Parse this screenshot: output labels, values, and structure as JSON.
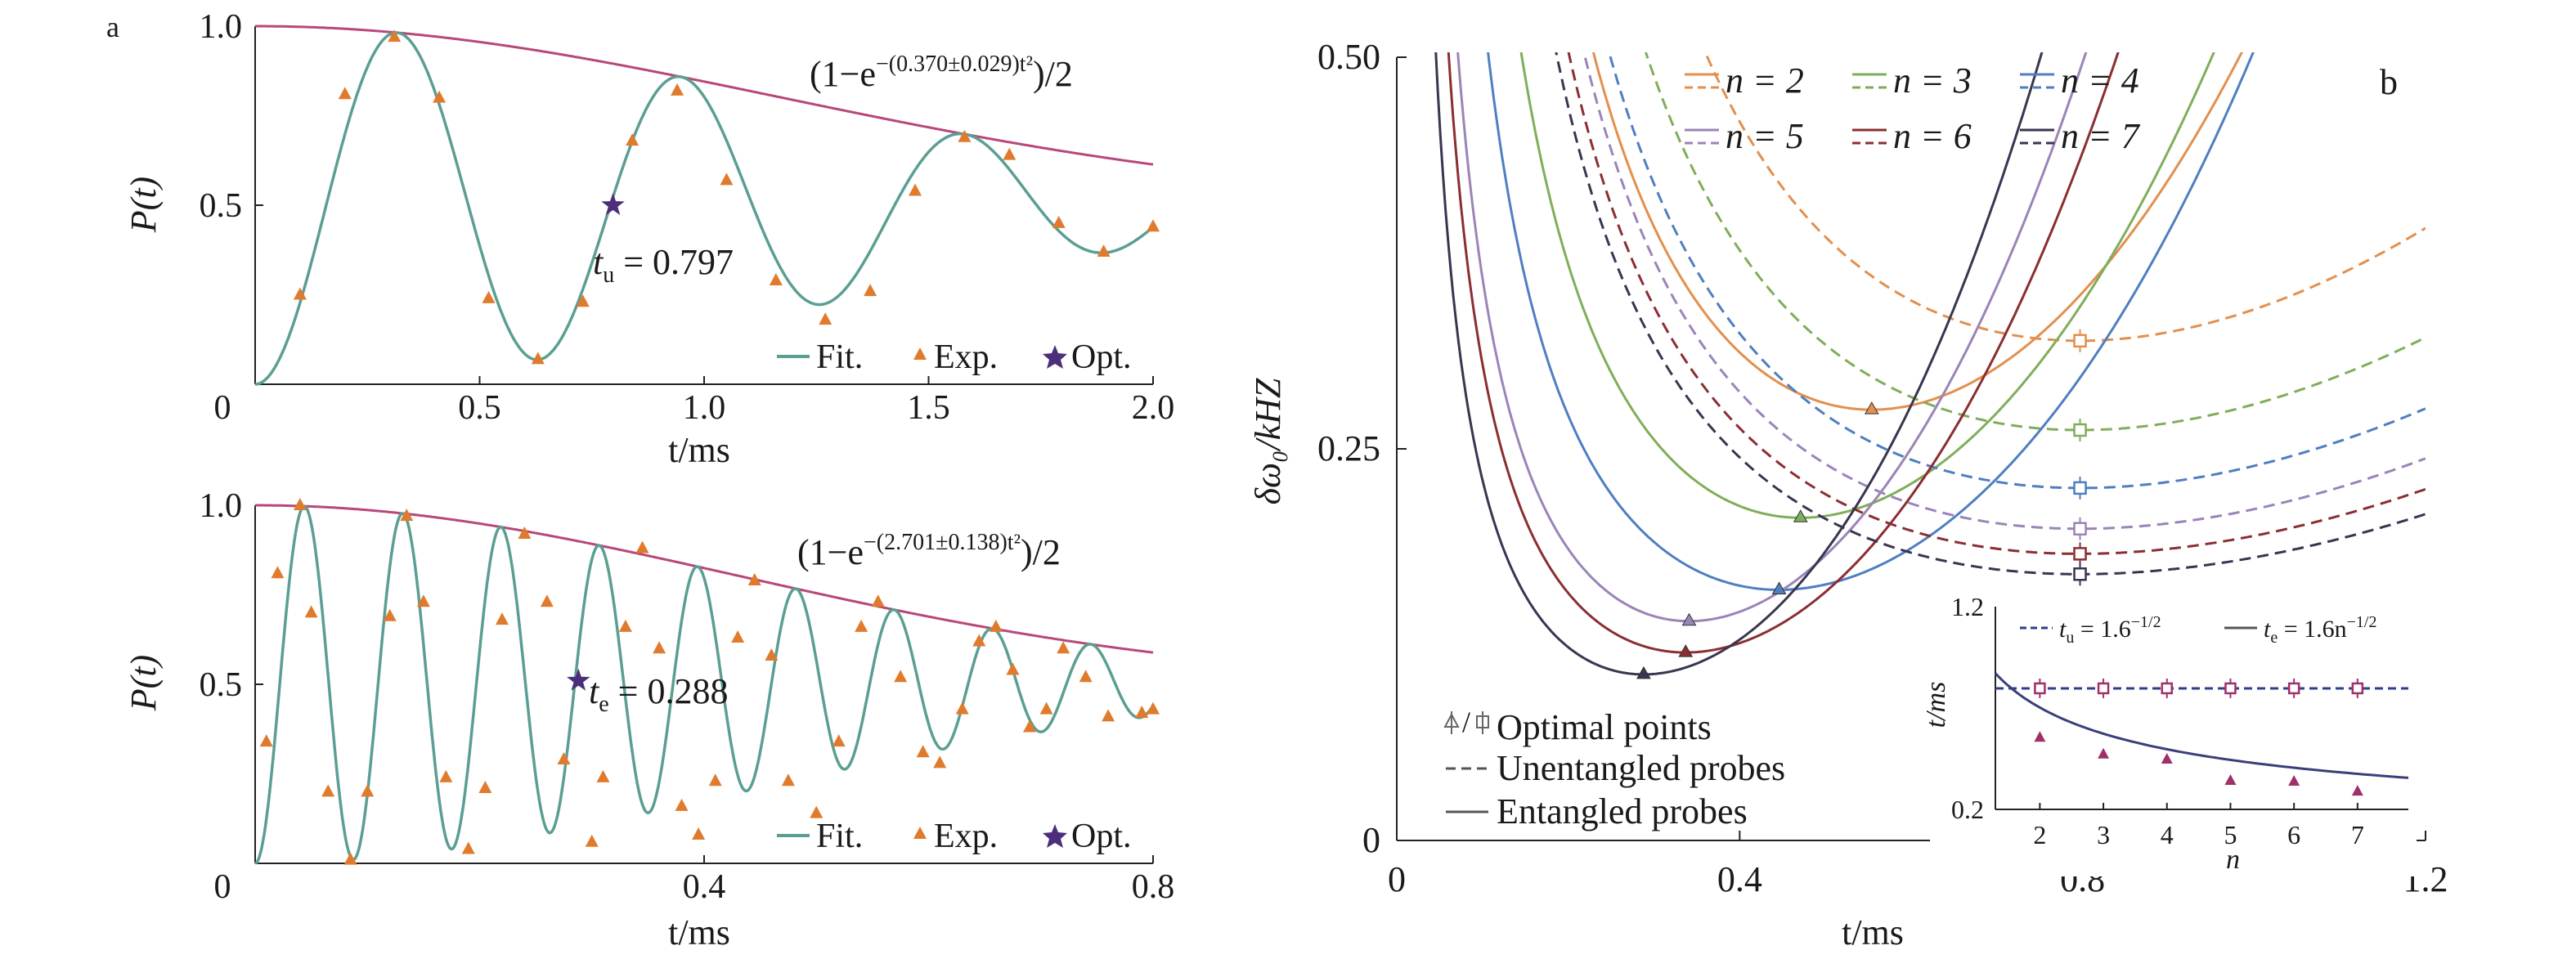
{
  "figure": {
    "label_a": "a",
    "label_b": "b"
  },
  "colors": {
    "fit": "#5b9e93",
    "envelope": "#b8477a",
    "exp": "#e07b2e",
    "opt": "#4b2f7a",
    "n2": "#e38f4d",
    "n3": "#7fae5b",
    "n4": "#4f7ec1",
    "n5": "#9b84b8",
    "n6": "#8b2e32",
    "n7": "#3a3550"
  },
  "chart_data": [
    {
      "type": "line",
      "panel": "a-top",
      "xlabel": "t/ms",
      "ylabel": "P(t)",
      "xlim": [
        0,
        2.0
      ],
      "ylim": [
        0,
        1.0
      ],
      "xticks": [
        "0",
        "0.5",
        "1.0",
        "1.5",
        "2.0"
      ],
      "yticks": [
        "0.5",
        "1.0"
      ],
      "envelope_label": {
        "prefix": "(1−e",
        "exponent": "−(0.370±0.029)t²",
        "suffix": ")/2"
      },
      "envelope_rate": 0.37,
      "fit_period": 0.633,
      "opt_label": {
        "symbol": "t",
        "sub": "u",
        "text": " = 0.797"
      },
      "opt_point": {
        "x": 0.797,
        "y": 0.5
      },
      "exp_points": [
        [
          0.1,
          0.25
        ],
        [
          0.2,
          0.81
        ],
        [
          0.31,
          0.97
        ],
        [
          0.41,
          0.8
        ],
        [
          0.52,
          0.24
        ],
        [
          0.63,
          0.07
        ],
        [
          0.73,
          0.23
        ],
        [
          0.84,
          0.68
        ],
        [
          0.94,
          0.82
        ],
        [
          1.05,
          0.57
        ],
        [
          1.16,
          0.29
        ],
        [
          1.27,
          0.18
        ],
        [
          1.37,
          0.26
        ],
        [
          1.47,
          0.54
        ],
        [
          1.58,
          0.69
        ],
        [
          1.68,
          0.64
        ],
        [
          1.79,
          0.45
        ],
        [
          1.89,
          0.37
        ],
        [
          2.0,
          0.44
        ]
      ],
      "legend": [
        "Fit.",
        "Exp.",
        "Opt."
      ]
    },
    {
      "type": "line",
      "panel": "a-bottom",
      "xlabel": "t/ms",
      "ylabel": "P(t)",
      "xlim": [
        0,
        0.8
      ],
      "ylim": [
        0,
        1.0
      ],
      "xticks": [
        "0",
        "0.4",
        "0.8"
      ],
      "yticks": [
        "0.5",
        "1.0"
      ],
      "envelope_label": {
        "prefix": "(1−e",
        "exponent": "−(2.701±0.138)t²",
        "suffix": ")/2"
      },
      "envelope_rate": 2.701,
      "fit_period": 0.0876,
      "opt_label": {
        "symbol": "t",
        "sub": "e",
        "text": " = 0.288"
      },
      "opt_point": {
        "x": 0.288,
        "y": 0.51
      },
      "exp_points": [
        [
          0.01,
          0.34
        ],
        [
          0.02,
          0.81
        ],
        [
          0.04,
          1.0
        ],
        [
          0.05,
          0.7
        ],
        [
          0.065,
          0.2
        ],
        [
          0.085,
          0.01
        ],
        [
          0.1,
          0.2
        ],
        [
          0.12,
          0.69
        ],
        [
          0.135,
          0.97
        ],
        [
          0.15,
          0.73
        ],
        [
          0.17,
          0.24
        ],
        [
          0.19,
          0.04
        ],
        [
          0.205,
          0.21
        ],
        [
          0.22,
          0.68
        ],
        [
          0.24,
          0.92
        ],
        [
          0.26,
          0.73
        ],
        [
          0.275,
          0.29
        ],
        [
          0.3,
          0.06
        ],
        [
          0.31,
          0.24
        ],
        [
          0.33,
          0.66
        ],
        [
          0.345,
          0.88
        ],
        [
          0.36,
          0.6
        ],
        [
          0.38,
          0.16
        ],
        [
          0.395,
          0.08
        ],
        [
          0.41,
          0.23
        ],
        [
          0.43,
          0.63
        ],
        [
          0.445,
          0.79
        ],
        [
          0.46,
          0.58
        ],
        [
          0.475,
          0.23
        ],
        [
          0.5,
          0.14
        ],
        [
          0.52,
          0.34
        ],
        [
          0.54,
          0.66
        ],
        [
          0.555,
          0.73
        ],
        [
          0.575,
          0.52
        ],
        [
          0.595,
          0.31
        ],
        [
          0.61,
          0.28
        ],
        [
          0.63,
          0.43
        ],
        [
          0.645,
          0.62
        ],
        [
          0.66,
          0.66
        ],
        [
          0.675,
          0.54
        ],
        [
          0.69,
          0.38
        ],
        [
          0.705,
          0.43
        ],
        [
          0.72,
          0.6
        ],
        [
          0.74,
          0.52
        ],
        [
          0.76,
          0.41
        ],
        [
          0.79,
          0.42
        ],
        [
          0.8,
          0.43
        ]
      ],
      "legend": [
        "Fit.",
        "Exp.",
        "Opt."
      ]
    },
    {
      "type": "line",
      "panel": "b",
      "xlabel": "t/ms",
      "ylabel": "δω₀/kHZ",
      "xlim": [
        0,
        1.2
      ],
      "ylim": [
        0,
        0.5
      ],
      "xticks": [
        "0",
        "0.4",
        "0.8",
        "1.2"
      ],
      "yticks": [
        "0",
        "0.25",
        "0.50"
      ],
      "series": [
        {
          "name": "n = 2",
          "n": 2,
          "entangled_opt": [
            0.554,
            0.275
          ],
          "unentangled_opt": [
            0.797,
            0.319
          ]
        },
        {
          "name": "n = 3",
          "n": 3,
          "entangled_opt": [
            0.471,
            0.206
          ],
          "unentangled_opt": [
            0.797,
            0.262
          ]
        },
        {
          "name": "n = 4",
          "n": 4,
          "entangled_opt": [
            0.446,
            0.16
          ],
          "unentangled_opt": [
            0.797,
            0.225
          ]
        },
        {
          "name": "n = 5",
          "n": 5,
          "entangled_opt": [
            0.341,
            0.14
          ],
          "unentangled_opt": [
            0.797,
            0.199
          ]
        },
        {
          "name": "n = 6",
          "n": 6,
          "entangled_opt": [
            0.337,
            0.12
          ],
          "unentangled_opt": [
            0.797,
            0.183
          ]
        },
        {
          "name": "n = 7",
          "n": 7,
          "entangled_opt": [
            0.288,
            0.106
          ],
          "unentangled_opt": [
            0.797,
            0.17
          ]
        }
      ],
      "legend_bottom": [
        "Optimal points",
        "Unentangled probes",
        "Entangled probes"
      ],
      "inset": {
        "xlabel": "n",
        "ylabel": "t/ms",
        "xlim": [
          1.3,
          7.8
        ],
        "ylim": [
          0.2,
          1.2
        ],
        "xticks": [
          "2",
          "3",
          "4",
          "5",
          "6",
          "7"
        ],
        "yticks": [
          "0.2",
          "1.2"
        ],
        "legend_u": {
          "sym": "t",
          "sub": "u",
          "text": " = 1.6",
          "sup": "−1/2"
        },
        "legend_e": {
          "sym": "t",
          "sub": "e",
          "text": " = 1.6n",
          "sup": "−1/2"
        },
        "tu_points": [
          [
            2,
            0.797
          ],
          [
            3,
            0.797
          ],
          [
            4,
            0.797
          ],
          [
            5,
            0.797
          ],
          [
            6,
            0.797
          ],
          [
            7,
            0.797
          ]
        ],
        "te_points": [
          [
            2,
            0.554
          ],
          [
            3,
            0.471
          ],
          [
            4,
            0.446
          ],
          [
            5,
            0.341
          ],
          [
            6,
            0.337
          ],
          [
            7,
            0.288
          ]
        ]
      }
    }
  ]
}
